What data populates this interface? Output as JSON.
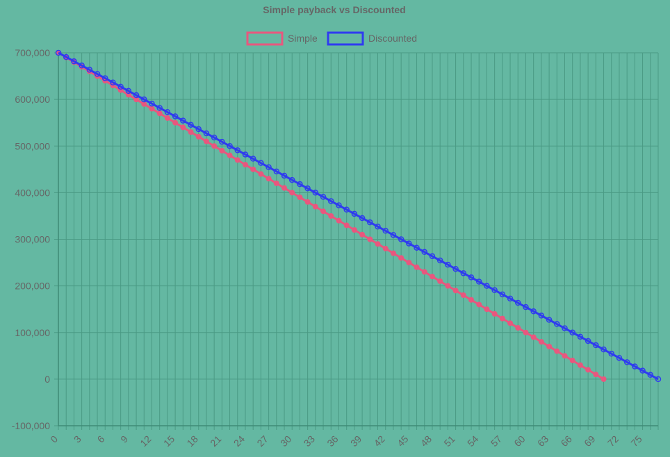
{
  "colors": {
    "background": "#64b8a2",
    "grid": "#4a9a84",
    "axis": "#3f8a76",
    "text": "#666666"
  },
  "chart_data": {
    "type": "line",
    "title": "Simple payback vs Discounted",
    "legend_position": "top",
    "grid": true,
    "xlabel": "",
    "ylabel": "",
    "x": {
      "start": 0,
      "end": 77,
      "step": 1
    },
    "x_tick_labels": [
      "0",
      "3",
      "6",
      "9",
      "12",
      "15",
      "18",
      "21",
      "24",
      "27",
      "30",
      "33",
      "36",
      "39",
      "42",
      "45",
      "48",
      "51",
      "54",
      "57",
      "60",
      "63",
      "66",
      "69",
      "72",
      "75"
    ],
    "y_tick_labels": [
      "700,000",
      "600,000",
      "500,000",
      "400,000",
      "300,000",
      "200,000",
      "100,000",
      "0",
      "-100,000"
    ],
    "y_ticks": [
      700000,
      600000,
      500000,
      400000,
      300000,
      200000,
      100000,
      0,
      -100000
    ],
    "ylim": [
      -100000,
      700000
    ],
    "xlim": [
      0,
      77
    ],
    "series": [
      {
        "name": "Simple",
        "color": "#e8577e",
        "marker": "filled-circle",
        "start_value": 700000,
        "end_value": 0,
        "x_end": 70
      },
      {
        "name": "Discounted",
        "color": "#2f3bf0",
        "marker": "open-circle",
        "start_value": 700000,
        "end_value": 0,
        "x_end": 77
      }
    ]
  }
}
